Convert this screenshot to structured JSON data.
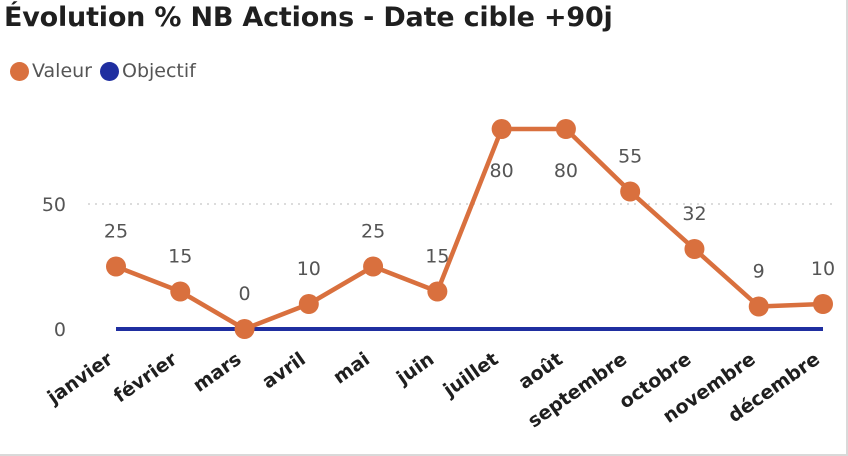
{
  "title": "Évolution % NB Actions - Date cible +90j",
  "legend": [
    {
      "label": "Valeur",
      "color": "#d9703e"
    },
    {
      "label": "Objectif",
      "color": "#1f2ea0"
    }
  ],
  "chart_data": {
    "type": "line",
    "title": "Évolution % NB Actions - Date cible +90j",
    "categories": [
      "janvier",
      "février",
      "mars",
      "avril",
      "mai",
      "juin",
      "juillet",
      "août",
      "septembre",
      "octobre",
      "novembre",
      "décembre"
    ],
    "series": [
      {
        "name": "Valeur",
        "color": "#d9703e",
        "values": [
          25,
          15,
          0,
          10,
          25,
          15,
          80,
          80,
          55,
          32,
          9,
          10
        ],
        "data_labels": true
      },
      {
        "name": "Objectif",
        "color": "#1f2ea0",
        "values": [
          0,
          0,
          0,
          0,
          0,
          0,
          0,
          0,
          0,
          0,
          0,
          0
        ],
        "data_labels": false
      }
    ],
    "y_ticks": [
      0,
      50
    ],
    "ylim": [
      0,
      80
    ],
    "xlabel": "",
    "ylabel": "",
    "grid": "dotted-horizontal",
    "legend_position": "top-left"
  }
}
